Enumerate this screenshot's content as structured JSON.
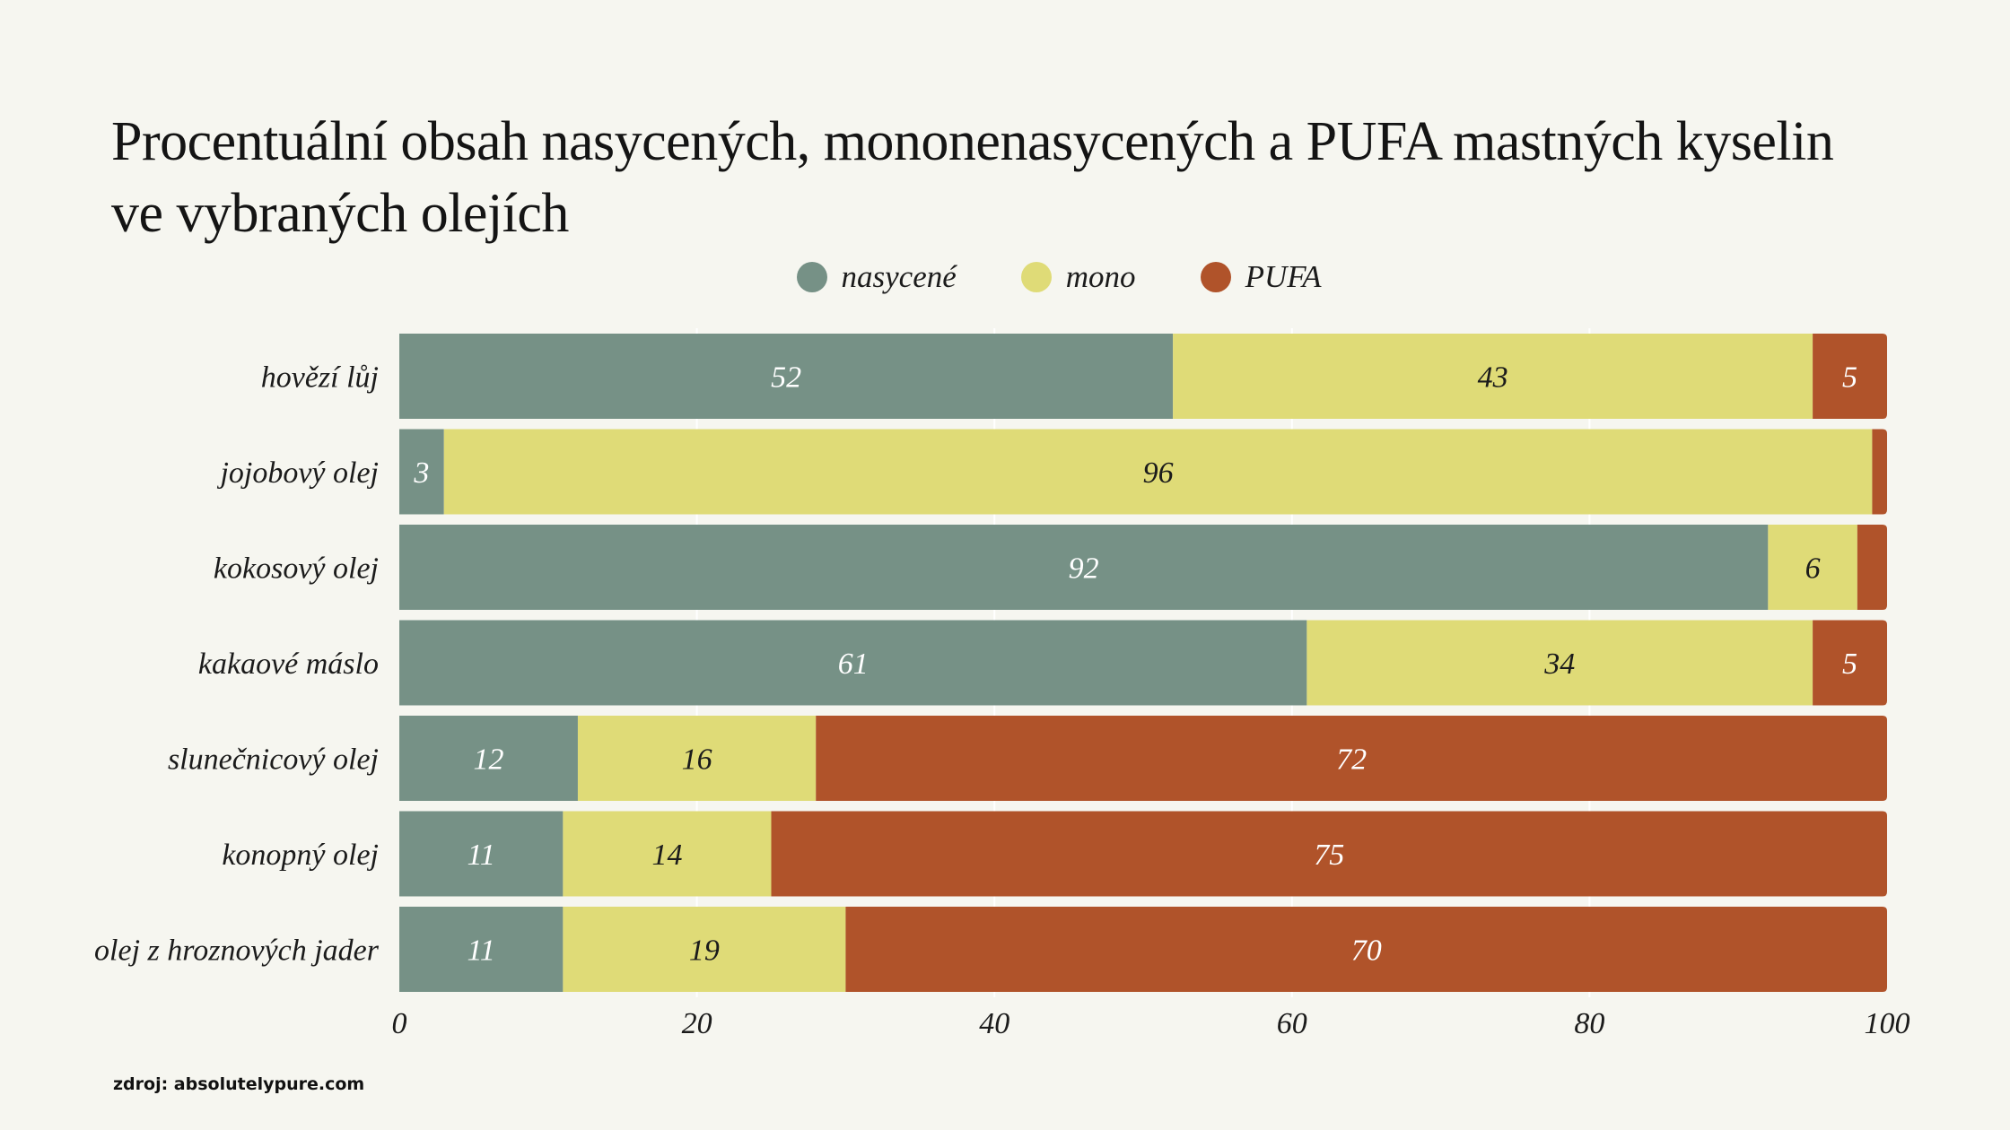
{
  "colors": {
    "background": "#f6f6f0",
    "nasycene": "#769186",
    "mono": "#dfdb77",
    "pufa": "#b0532a",
    "grid": "#ffffff"
  },
  "legend": [
    {
      "label": "nasycené",
      "color": "#769186"
    },
    {
      "label": "mono",
      "color": "#dfdb77"
    },
    {
      "label": "PUFA",
      "color": "#b0532a"
    }
  ],
  "source": "zdroj: absolutelypure.com",
  "chart_data": {
    "type": "bar",
    "orientation": "horizontal",
    "stacked": true,
    "title": "Procentuální obsah nasycených, mononenasycených a PUFA mastných kyselin ve vybraných olejích",
    "categories": [
      "hovězí lůj",
      "jojobový olej",
      "kokosový olej",
      "kakaové máslo",
      "slunečnicový olej",
      "konopný olej",
      "olej z hroznových jader"
    ],
    "series": [
      {
        "name": "nasycené",
        "color": "#769186",
        "label_color": "#ffffff",
        "values": [
          52,
          3,
          92,
          61,
          12,
          11,
          11
        ],
        "labels": [
          "52",
          "3",
          "92",
          "61",
          "12",
          "11",
          "11"
        ]
      },
      {
        "name": "mono",
        "color": "#dfdb77",
        "label_color": "#1b1b1b",
        "values": [
          43,
          96,
          6,
          34,
          16,
          14,
          19
        ],
        "labels": [
          "43",
          "96",
          "6",
          "34",
          "16",
          "14",
          "19"
        ]
      },
      {
        "name": "PUFA",
        "color": "#b0532a",
        "label_color": "#ffffff",
        "values": [
          5,
          1,
          2,
          5,
          72,
          75,
          70
        ],
        "labels": [
          "5",
          "",
          "",
          "5",
          "72",
          "75",
          "70"
        ]
      }
    ],
    "xlim": [
      0,
      100
    ],
    "xticks": [
      0,
      20,
      40,
      60,
      80,
      100
    ],
    "xlabel": "",
    "ylabel": "",
    "grid": true,
    "legend_position": "top-center"
  }
}
